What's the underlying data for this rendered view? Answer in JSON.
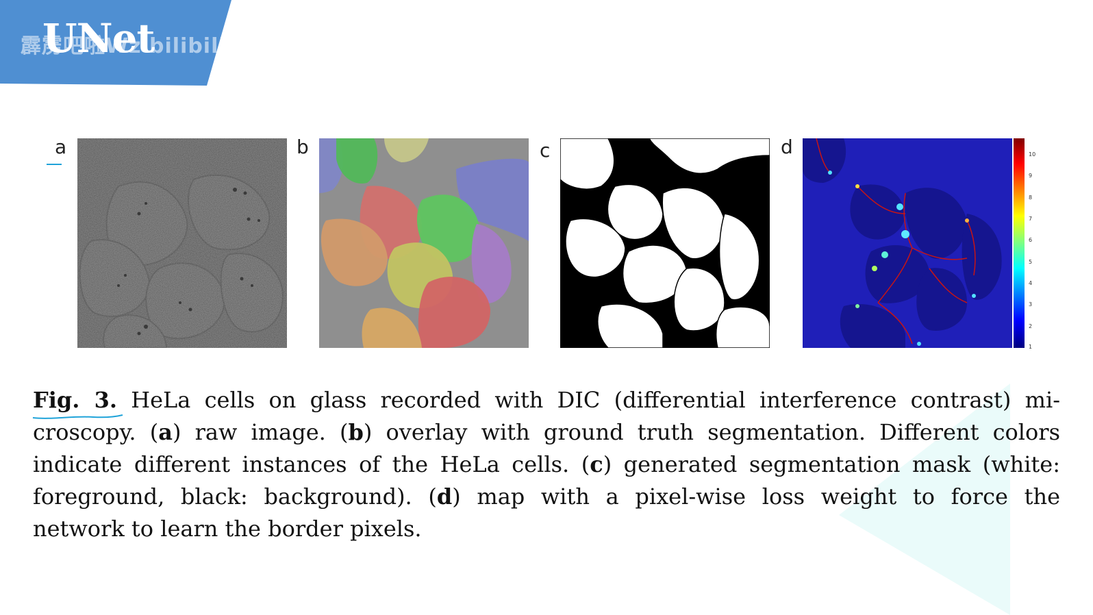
{
  "slide": {
    "title": "UNet",
    "watermark": "霹雳吧啦Wz bilibili"
  },
  "figure": {
    "panels": [
      {
        "label": "a"
      },
      {
        "label": "b"
      },
      {
        "label": "c"
      },
      {
        "label": "d"
      }
    ],
    "colorbar_ticks": [
      "10",
      "9",
      "8",
      "7",
      "6",
      "5",
      "4",
      "3",
      "2",
      "1"
    ],
    "colors": {
      "banner": "#4f8fd2",
      "weight_map_bg": "#1f1fb8",
      "weight_map_cell": "#15158f",
      "border_line": "#c81414",
      "accent_underline": "#1fa3d9"
    }
  },
  "caption": {
    "fig_label": "Fig. 3.",
    "l1_text": " HeLa cells on glass recorded with DIC (differential interference contrast) mi-",
    "l2_a": "croscopy. (",
    "l2_b": "a",
    "l2_c": ") raw image. (",
    "l2_d": "b",
    "l2_e": ") overlay with ground truth segmentation. Different colors",
    "l3_a": "indicate different instances of the HeLa cells. (",
    "l3_b": "c",
    "l3_c": ") generated segmentation mask (white:",
    "l4_a": "foreground, black: background). (",
    "l4_b": "d",
    "l4_c": ") map with a pixel-wise loss weight to force the",
    "l5": "network to learn the border pixels."
  }
}
